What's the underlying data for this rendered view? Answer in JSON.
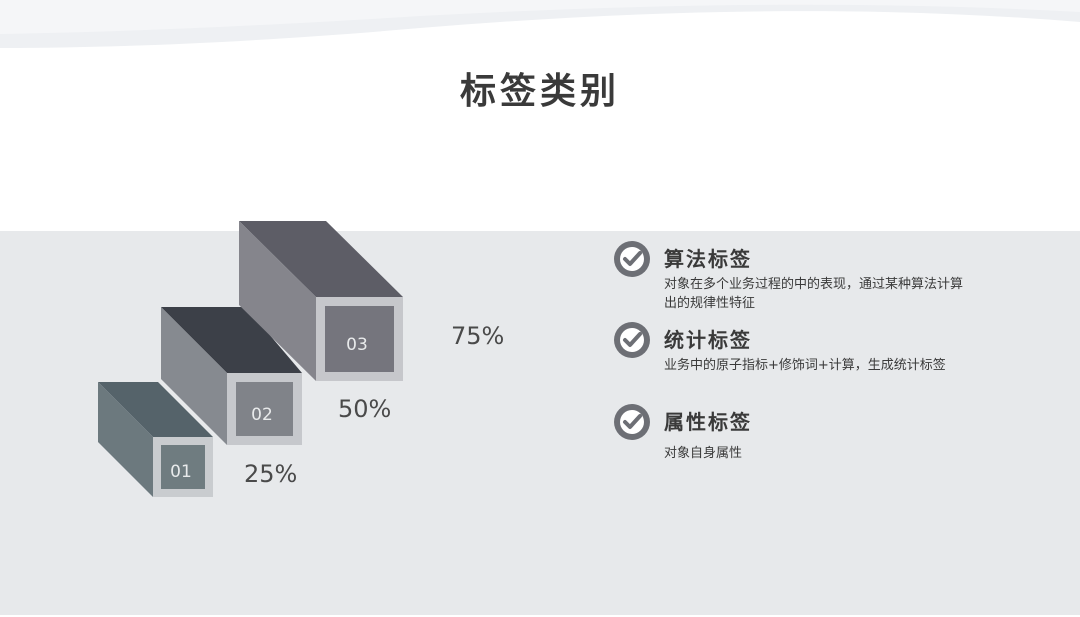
{
  "title": "标签类别",
  "steps": [
    {
      "number": "01",
      "percent": "25%"
    },
    {
      "number": "02",
      "percent": "50%"
    },
    {
      "number": "03",
      "percent": "75%"
    }
  ],
  "categories": [
    {
      "title": "算法标签",
      "description": "对象在多个业务过程的中的表现，通过某种算法计算出的规律性特征",
      "icon": "check-circle-icon"
    },
    {
      "title": "统计标签",
      "description": "业务中的原子指标+修饰词+计算，生成统计标签",
      "icon": "check-circle-icon"
    },
    {
      "title": "属性标签",
      "description": "对象自身属性",
      "icon": "check-circle-icon"
    }
  ],
  "colors": {
    "band": "#e7e9eb",
    "check_fill": "#6d6f75",
    "box1": "#6f7c80",
    "box2": "#85888f",
    "box3": "#75757d"
  }
}
